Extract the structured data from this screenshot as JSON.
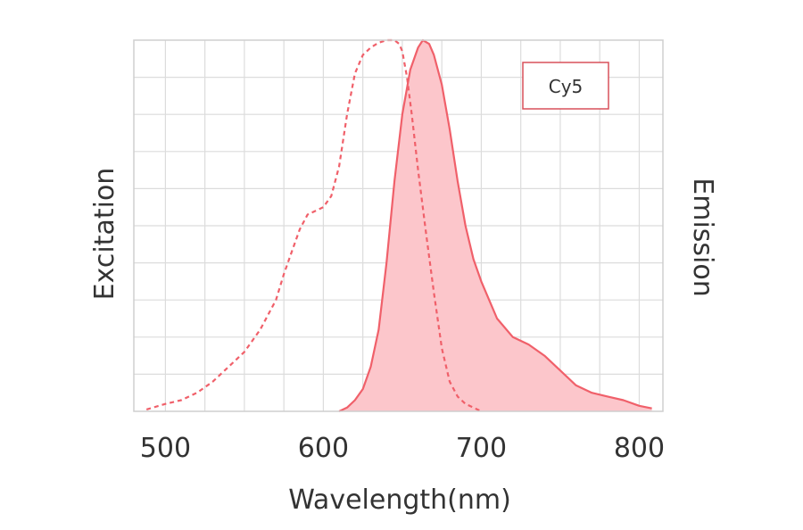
{
  "chart_data": {
    "type": "line",
    "title": "",
    "xlabel": "Wavelength(nm)",
    "ylabel_left": "Excitation",
    "ylabel_right": "Emission",
    "xlim": [
      480,
      815
    ],
    "ylim": [
      0,
      100
    ],
    "x_ticks": [
      500,
      600,
      700,
      800
    ],
    "grid": true,
    "legend": {
      "label": "Cy5",
      "placement": "top-right"
    },
    "colors": {
      "line": "#f0606a",
      "fill": "#fcc6cb",
      "grid": "#dcdcdc",
      "legend_border": "#d9505a"
    },
    "series": [
      {
        "name": "Excitation",
        "style": "dashed",
        "filled": false,
        "x": [
          488,
          500,
          510,
          520,
          530,
          540,
          550,
          560,
          570,
          575,
          580,
          585,
          590,
          600,
          605,
          610,
          615,
          620,
          625,
          630,
          635,
          640,
          645,
          648,
          650,
          653,
          656,
          660,
          665,
          670,
          675,
          680,
          685,
          690,
          695,
          700
        ],
        "y": [
          0.5,
          2,
          3,
          5,
          8,
          12,
          16,
          22,
          30,
          37,
          43,
          49,
          53,
          55,
          58,
          66,
          80,
          91,
          96,
          98,
          99.3,
          100,
          100,
          99,
          97,
          90,
          80,
          65,
          48,
          32,
          17,
          8,
          4,
          2,
          1,
          0
        ]
      },
      {
        "name": "Emission",
        "style": "solid",
        "filled": true,
        "x": [
          610,
          615,
          620,
          625,
          630,
          635,
          640,
          645,
          650,
          655,
          660,
          663,
          667,
          670,
          675,
          680,
          685,
          690,
          695,
          700,
          710,
          720,
          730,
          740,
          750,
          760,
          770,
          780,
          790,
          800,
          808
        ],
        "y": [
          0,
          1,
          3,
          6,
          12,
          22,
          40,
          62,
          80,
          92,
          98,
          100,
          99,
          96,
          88,
          76,
          62,
          50,
          41,
          35,
          25,
          20,
          18,
          15,
          11,
          7,
          5,
          4,
          3,
          1.5,
          0.8
        ]
      }
    ]
  }
}
